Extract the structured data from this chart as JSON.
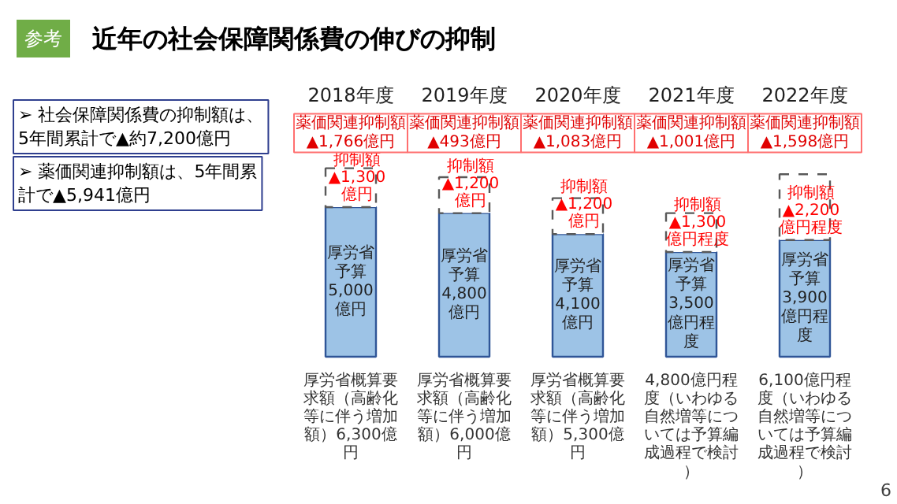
{
  "chart_data": {
    "type": "bar",
    "stacked": true,
    "title": "近年の社会保障関係費の伸びの抑制",
    "categories": [
      "2018年度",
      "2019年度",
      "2020年度",
      "2021年度",
      "2022年度"
    ],
    "series": [
      {
        "color": "#9dc3e6",
        "values": [
          5000,
          4800,
          4100,
          3500,
          3900
        ],
        "value_labels": [
          "厚労省予算5,000億円",
          "厚労省予算4,800億円",
          "厚労省予算4,100億円",
          "厚労省予算3,500億円程度",
          "厚労省予算3,900億円程度"
        ]
      },
      {
        "color": "#ffffff",
        "line_style": "dashed",
        "values": [
          1300,
          1200,
          1200,
          1300,
          2200
        ],
        "value_labels": [
          "抑制額▲1,300億円",
          "抑制額▲1,200億円",
          "抑制額▲1,200億円",
          "抑制額▲1,300億円程度",
          "抑制額▲2,200億円程度"
        ]
      }
    ],
    "totals": [
      "厚労省概算要求額（高齢化等に伴う増加額）6,300億円",
      "厚労省概算要求額（高齢化等に伴う増加額）6,000億円",
      "厚労省概算要求額（高齢化等に伴う増加額）5,300億円",
      "4,800億円程度（いわゆる自然増等については予算編成過程で検討）",
      "6,100億円程度（いわゆる自然増等については予算編成過程で検討）"
    ],
    "annotations": [
      "参考",
      "➢ 社会保障関係費の抑制額は、5年間累計で▲約7,200億円",
      "➢ 薬価関連抑制額は、5年間累計で▲5,941億円",
      "6",
      "薬価関連抑制額▲1,766億円",
      "薬価関連抑制額▲493億円",
      "薬価関連抑制額▲1,083億円",
      "薬価関連抑制額▲1,001億円",
      "薬価関連抑制額▲1,598億円"
    ]
  }
}
